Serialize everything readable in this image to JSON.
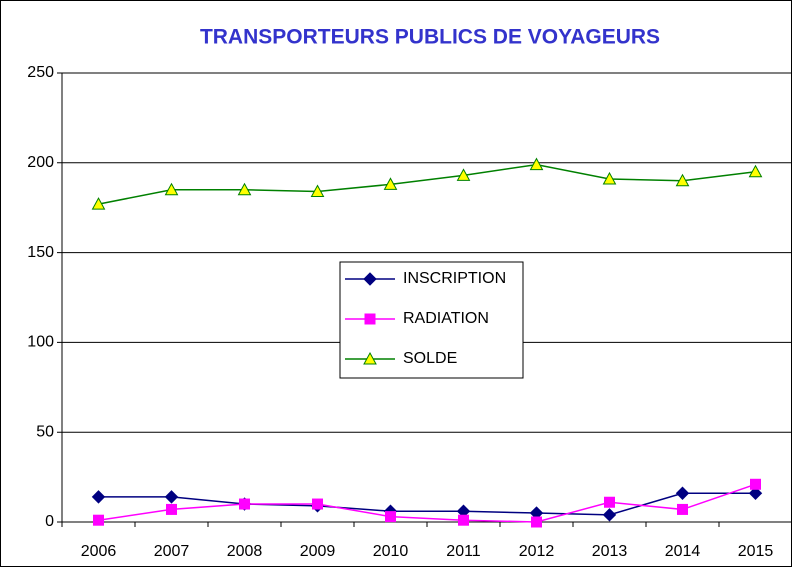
{
  "chart_data": {
    "type": "line",
    "title": "TRANSPORTEURS PUBLICS DE VOYAGEURS",
    "categories": [
      "2006",
      "2007",
      "2008",
      "2009",
      "2010",
      "2011",
      "2012",
      "2013",
      "2014",
      "2015"
    ],
    "series": [
      {
        "name": "INSCRIPTION",
        "color": "#000080",
        "marker": "diamond",
        "values": [
          14,
          14,
          10,
          9,
          6,
          6,
          5,
          4,
          16,
          16
        ]
      },
      {
        "name": "RADIATION",
        "color": "#ff00ff",
        "marker": "square",
        "values": [
          1,
          7,
          10,
          10,
          3,
          1,
          0,
          11,
          7,
          21
        ]
      },
      {
        "name": "SOLDE",
        "color": "#008000",
        "marker": "triangle",
        "values": [
          177,
          185,
          185,
          184,
          188,
          193,
          199,
          191,
          190,
          195
        ]
      }
    ],
    "ylim": [
      0,
      250
    ],
    "yticks": [
      0,
      50,
      100,
      150,
      200,
      250
    ],
    "grid": true,
    "legend": "center"
  }
}
